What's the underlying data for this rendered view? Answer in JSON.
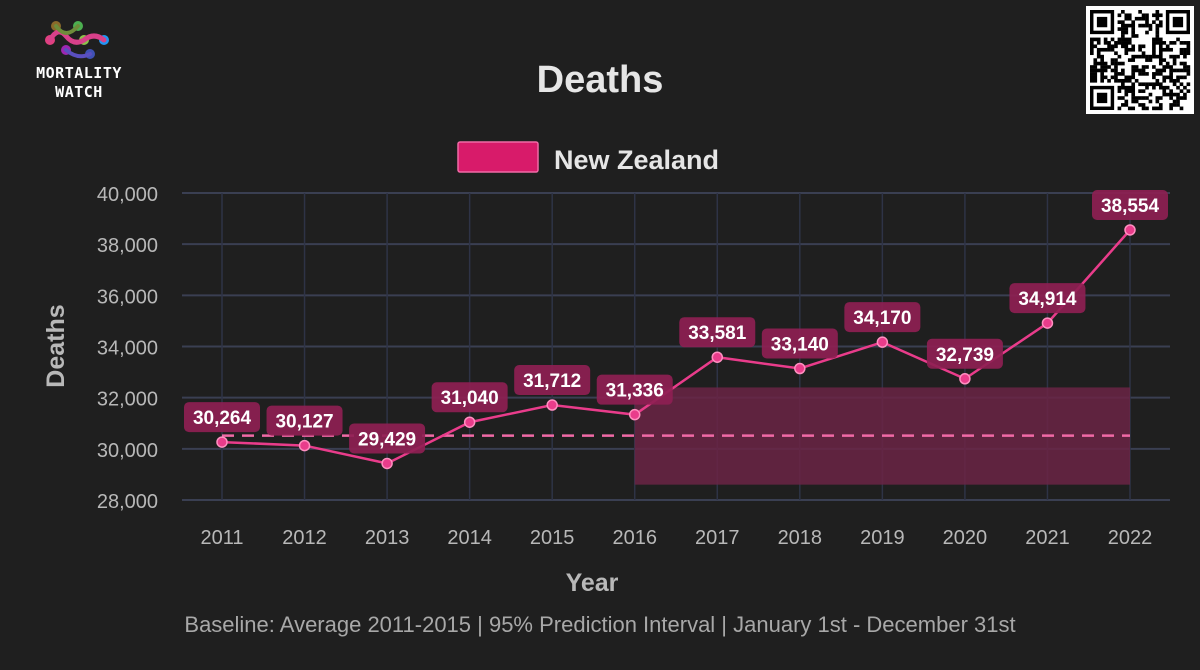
{
  "logo": {
    "line1": "MORTALITY",
    "line2": "WATCH"
  },
  "chart_data": {
    "type": "line",
    "title": "Deaths",
    "xlabel": "Year",
    "ylabel": "Deaths",
    "footnote": "Baseline: Average 2011-2015 | 95% Prediction Interval | January 1st - December 31st",
    "x": [
      "2011",
      "2012",
      "2013",
      "2014",
      "2015",
      "2016",
      "2017",
      "2018",
      "2019",
      "2020",
      "2021",
      "2022"
    ],
    "ylim": [
      28000,
      40000
    ],
    "yticks": [
      28000,
      30000,
      32000,
      34000,
      36000,
      38000,
      40000
    ],
    "ytick_labels": [
      "28,000",
      "30,000",
      "32,000",
      "34,000",
      "36,000",
      "38,000",
      "40,000"
    ],
    "grid": true,
    "legend_position": "top-center",
    "series": [
      {
        "name": "New Zealand",
        "color": "#e93c8b",
        "values": [
          30264,
          30127,
          29429,
          31040,
          31712,
          31336,
          33581,
          33140,
          34170,
          32739,
          34914,
          38554
        ],
        "data_labels": [
          "30,264",
          "30,127",
          "29,429",
          "31,040",
          "31,712",
          "31,336",
          "33,581",
          "33,140",
          "34,170",
          "32,739",
          "34,914",
          "38,554"
        ]
      }
    ],
    "baseline": {
      "value": 30514,
      "from": "2011",
      "to": "2022",
      "style": "dashed",
      "color": "#f06aa6"
    },
    "prediction_interval": {
      "from": "2016",
      "to": "2022",
      "lower": 28600,
      "upper": 32400,
      "color": "#6b2445"
    }
  }
}
